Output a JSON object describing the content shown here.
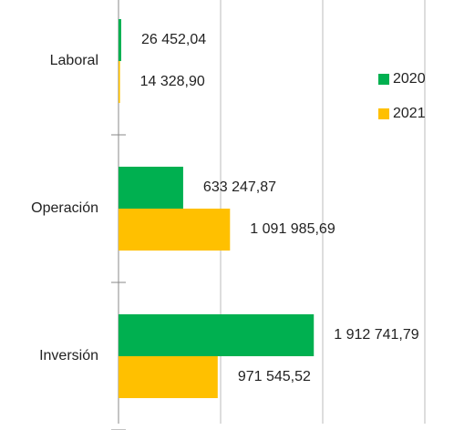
{
  "chart_data": {
    "type": "hbar",
    "categories": [
      "Laboral",
      "Operación",
      "Inversión"
    ],
    "series": [
      {
        "name": "2020",
        "color": "#00b050",
        "values": [
          26452.04,
          633247.87,
          1912741.79
        ],
        "value_labels": [
          "26 452,04",
          "633 247,87",
          "1 912 741,79"
        ]
      },
      {
        "name": "2021",
        "color": "#ffc000",
        "values": [
          14328.9,
          1091985.69,
          971545.52
        ],
        "value_labels": [
          "14 328,90",
          "1 091 985,69",
          "971 545,52"
        ]
      }
    ],
    "xlim": [
      0,
      3000000
    ],
    "xticks": [
      0,
      1000000,
      2000000,
      3000000
    ],
    "grid": true,
    "legend": "right"
  }
}
